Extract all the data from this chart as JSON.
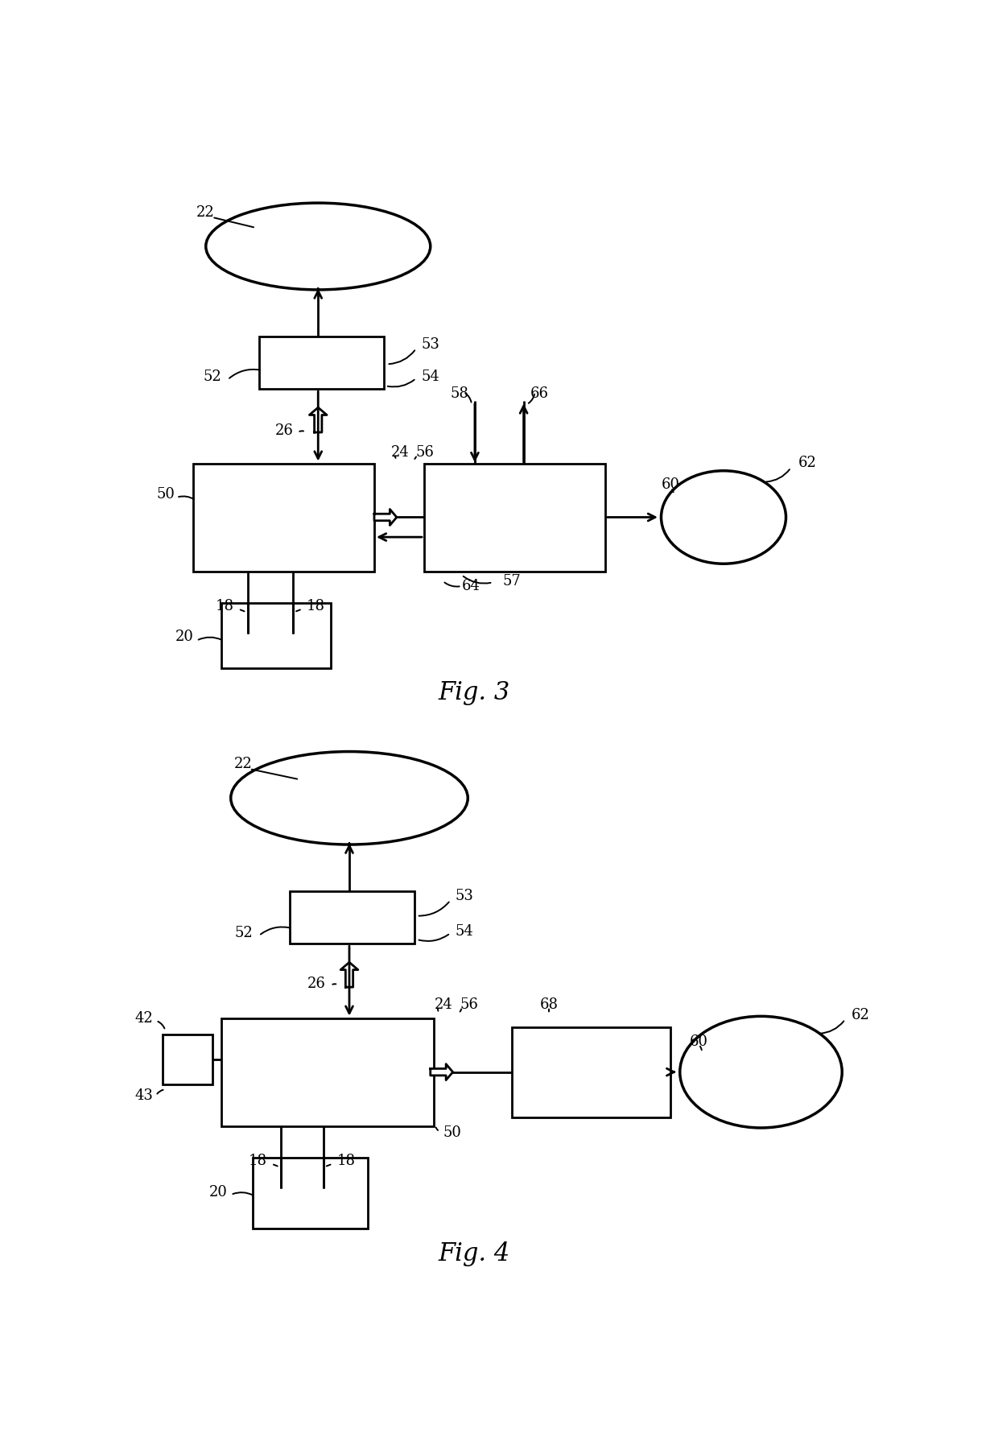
{
  "bg_color": "#ffffff",
  "lc": "#000000",
  "lw": 2.0,
  "fs": 13
}
